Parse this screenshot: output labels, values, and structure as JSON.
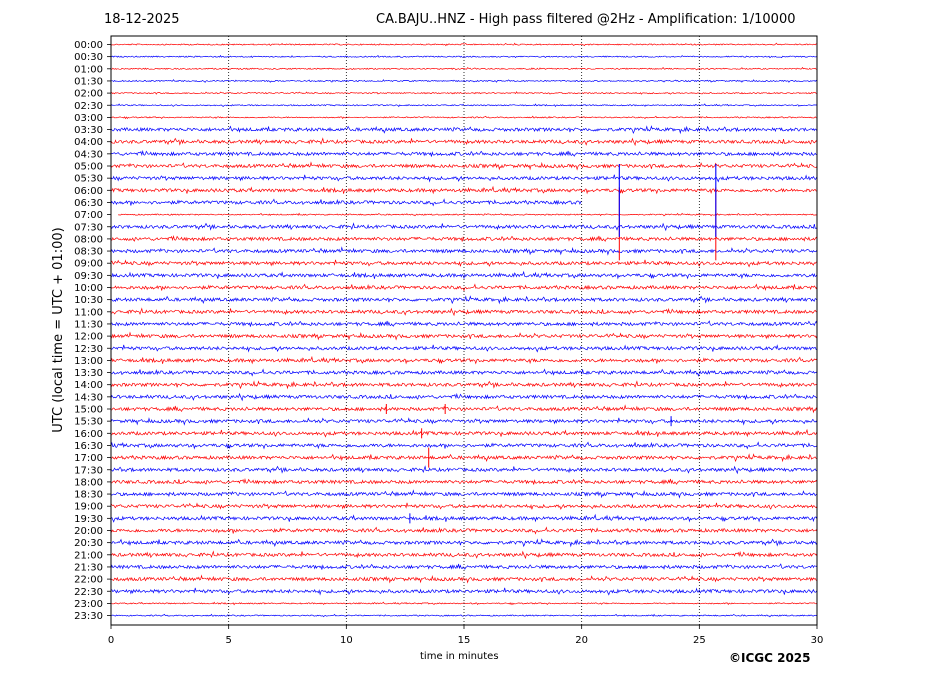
{
  "header": {
    "date": "18-12-2025",
    "title": "CA.BAJU..HNZ - High pass filtered @2Hz - Amplification: 1/10000"
  },
  "footer": {
    "copyright": "©ICGC 2025"
  },
  "chart_data": {
    "type": "line",
    "title": "CA.BAJU..HNZ - High pass filtered @2Hz - Amplification: 1/10000",
    "xlabel": "time in minutes",
    "ylabel": "UTC (local time = UTC + 01:00)",
    "xlim": [
      0,
      30
    ],
    "xticks": [
      0,
      5,
      10,
      15,
      20,
      25,
      30
    ],
    "grid_x": true,
    "rows": [
      "00:00",
      "00:30",
      "01:00",
      "01:30",
      "02:00",
      "02:30",
      "03:00",
      "03:30",
      "04:00",
      "04:30",
      "05:00",
      "05:30",
      "06:00",
      "06:30",
      "07:00",
      "07:30",
      "08:00",
      "08:30",
      "09:00",
      "09:30",
      "10:00",
      "10:30",
      "11:00",
      "11:30",
      "12:00",
      "12:30",
      "13:00",
      "13:30",
      "14:00",
      "14:30",
      "15:00",
      "15:30",
      "16:00",
      "16:30",
      "17:00",
      "17:30",
      "18:00",
      "18:30",
      "19:00",
      "19:30",
      "20:00",
      "20:30",
      "21:00",
      "21:30",
      "22:00",
      "22:30",
      "23:00",
      "23:30"
    ],
    "row_colors": [
      "#ff0000",
      "#0000ff"
    ],
    "data_gap": {
      "start": [
        "06:30",
        20.0
      ],
      "end": [
        "07:00",
        0.3
      ]
    },
    "spikes": [
      {
        "row": "06:00",
        "minute": 21.6,
        "amplitude": "large"
      },
      {
        "row": "06:00",
        "minute": 25.7,
        "amplitude": "large"
      },
      {
        "row": "17:00",
        "minute": 13.5,
        "amplitude": "medium"
      },
      {
        "row": "15:00",
        "minute": 11.7,
        "amplitude": "small"
      },
      {
        "row": "15:00",
        "minute": 14.2,
        "amplitude": "small"
      },
      {
        "row": "16:00",
        "minute": 13.2,
        "amplitude": "small"
      },
      {
        "row": "15:30",
        "minute": 23.8,
        "amplitude": "small"
      },
      {
        "row": "19:30",
        "minute": 12.7,
        "amplitude": "small"
      }
    ]
  }
}
